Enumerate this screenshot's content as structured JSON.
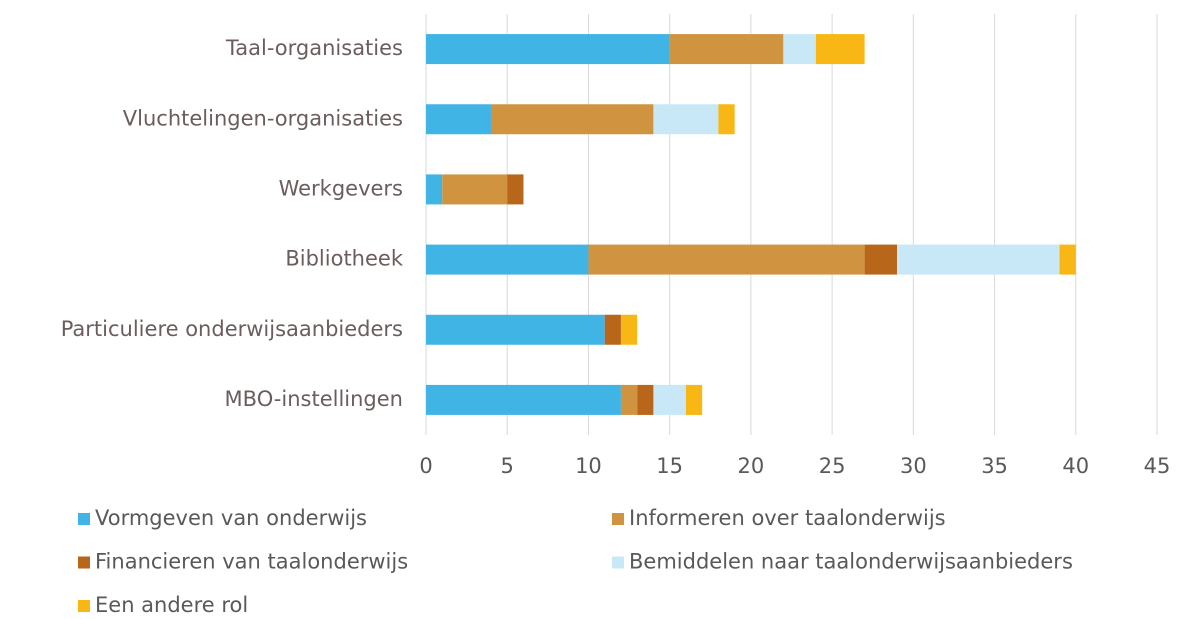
{
  "chart_data": {
    "type": "stacked-barh",
    "categories": [
      "Taal-organisaties",
      "Vluchtelingen-organisaties",
      "Werkgevers",
      "Bibliotheek",
      "Particuliere onderwijsaanbieders",
      "MBO-instellingen"
    ],
    "series": [
      {
        "name": "Vormgeven van onderwijs",
        "color": "#41b4e6",
        "values": [
          15,
          4,
          1,
          10,
          11,
          12
        ]
      },
      {
        "name": "Informeren over taalonderwijs",
        "color": "#d09440",
        "values": [
          7,
          10,
          4,
          17,
          0,
          1
        ]
      },
      {
        "name": "Financieren van taalonderwijs",
        "color": "#b8661a",
        "values": [
          0,
          0,
          1,
          2,
          1,
          1
        ]
      },
      {
        "name": "Bemiddelen naar taalonderwijsaanbieders",
        "color": "#c8e8f7",
        "values": [
          2,
          4,
          0,
          10,
          0,
          2
        ]
      },
      {
        "name": "Een andere rol",
        "color": "#f8b714",
        "values": [
          3,
          1,
          0,
          1,
          1,
          1
        ]
      }
    ],
    "xlim": [
      0,
      45
    ],
    "xticks": [
      0,
      5,
      10,
      15,
      20,
      25,
      30,
      35,
      40,
      45
    ],
    "grid": true,
    "legend": "bottom"
  }
}
